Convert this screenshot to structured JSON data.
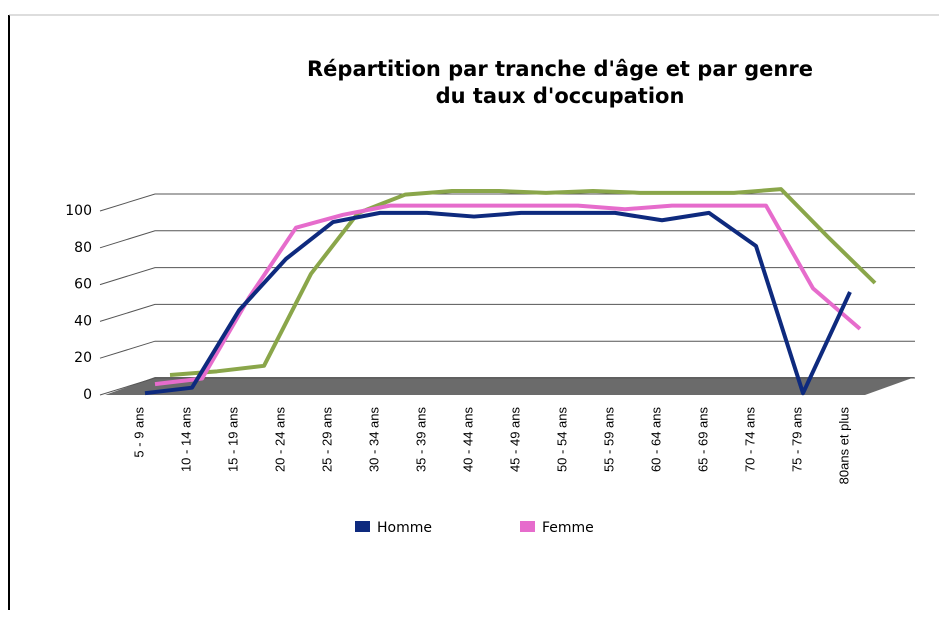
{
  "chart_data": {
    "type": "line",
    "title": [
      "Répartition par tranche d'âge et par genre",
      "du taux d'occupation"
    ],
    "categories": [
      "5 - 9 ans",
      "10 - 14 ans",
      "15 - 19 ans",
      "20 - 24 ans",
      "25 - 29 ans",
      "30 - 34 ans",
      "35 - 39 ans",
      "40 - 44 ans",
      "45 - 49 ans",
      "50 - 54 ans",
      "55 - 59 ans",
      "60 - 64 ans",
      "65 - 69 ans",
      "70 - 74 ans",
      "75 - 79 ans",
      "80ans et plus"
    ],
    "series": [
      {
        "name": "Homme",
        "color": "#0e2a7e",
        "values": [
          0,
          3,
          45,
          73,
          93,
          98,
          98,
          96,
          98,
          98,
          98,
          94,
          98,
          80,
          0,
          55
        ]
      },
      {
        "name": "Femme",
        "color": "#e66ccc",
        "values": [
          3,
          6,
          50,
          88,
          95,
          100,
          100,
          100,
          100,
          100,
          98,
          100,
          100,
          100,
          55,
          33
        ]
      },
      {
        "color": "#8aa64a",
        "values": [
          5,
          7,
          10,
          60,
          93,
          103,
          105,
          105,
          104,
          105,
          104,
          104,
          104,
          106,
          80,
          55
        ]
      }
    ],
    "ylim": [
      0,
      100
    ],
    "yticks": [
      0,
      20,
      40,
      60,
      80,
      100
    ],
    "grid": true
  }
}
